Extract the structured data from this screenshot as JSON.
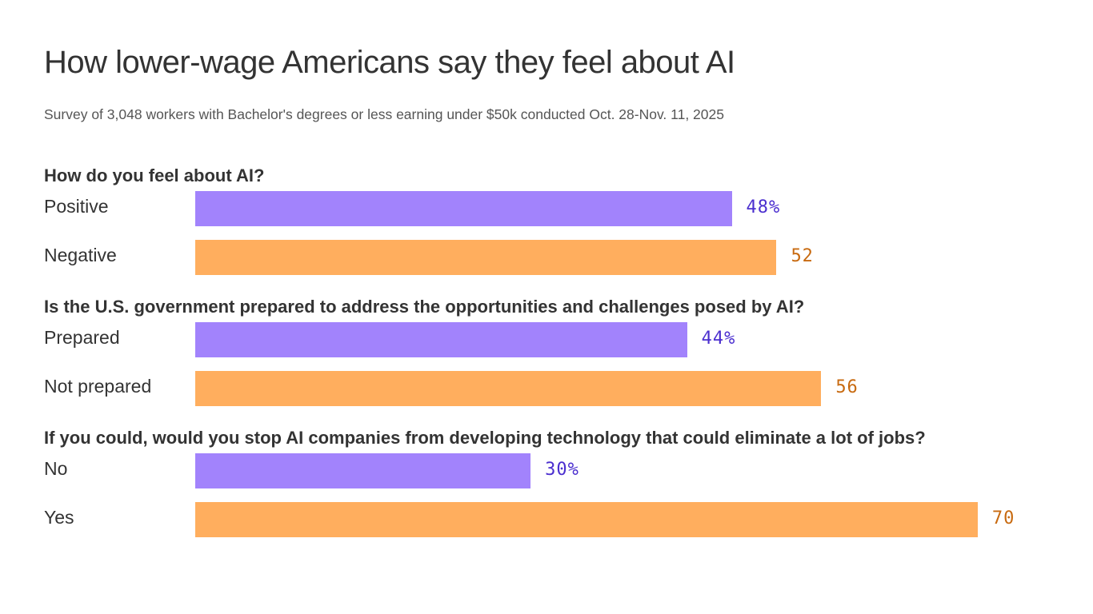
{
  "chart_data": {
    "type": "bar",
    "orientation": "horizontal",
    "title": "How lower-wage Americans say they feel about AI",
    "subtitle": "Survey of 3,048 workers with Bachelor's degrees or less earning under $50k conducted Oct. 28-Nov. 11, 2025",
    "xlim": [
      0,
      100
    ],
    "grid": false,
    "unit": "%",
    "colors": {
      "first_bar": "#a283fc",
      "first_text": "#4b2fcf",
      "second_bar": "#ffae5e",
      "second_text": "#c86a10"
    },
    "groups": [
      {
        "question": "How do you feel about AI?",
        "items": [
          {
            "label": "Positive",
            "value": 48,
            "value_label": "48%"
          },
          {
            "label": "Negative",
            "value": 52,
            "value_label": "52"
          }
        ]
      },
      {
        "question": "Is the U.S. government prepared to address the opportunities and challenges posed by AI?",
        "items": [
          {
            "label": "Prepared",
            "value": 44,
            "value_label": "44%"
          },
          {
            "label": "Not prepared",
            "value": 56,
            "value_label": "56"
          }
        ]
      },
      {
        "question": "If you could, would you stop AI companies from developing technology that could eliminate a lot of jobs?",
        "items": [
          {
            "label": "No",
            "value": 30,
            "value_label": "30%"
          },
          {
            "label": "Yes",
            "value": 70,
            "value_label": "70"
          }
        ]
      }
    ]
  }
}
